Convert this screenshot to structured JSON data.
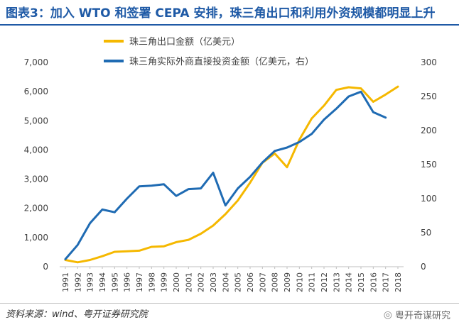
{
  "header": {
    "title": "图表3：加入 WTO 和签署 CEPA 安排，珠三角出口和利用外资规模都明显上升"
  },
  "footer": {
    "source": "资料来源：wind、粤开证券研究院",
    "watermark": "粤开奇谋研究"
  },
  "icons": {
    "watermark": "wechat-icon"
  },
  "chart_data": {
    "type": "line",
    "x": [
      "1991",
      "1992",
      "1993",
      "1994",
      "1995",
      "1996",
      "1997",
      "1998",
      "1999",
      "2000",
      "2001",
      "2002",
      "2003",
      "2004",
      "2005",
      "2006",
      "2007",
      "2008",
      "2009",
      "2010",
      "2011",
      "2012",
      "2013",
      "2014",
      "2015",
      "2016",
      "2017",
      "2018"
    ],
    "series": [
      {
        "name": "珠三角出口金额（亿美元）",
        "axis": "left",
        "color": "#f5b800",
        "values": [
          230,
          150,
          230,
          360,
          510,
          530,
          550,
          680,
          700,
          840,
          920,
          1130,
          1410,
          1800,
          2270,
          2880,
          3560,
          3880,
          3410,
          4350,
          5080,
          5520,
          6060,
          6150,
          6110,
          5650,
          5900,
          6170
        ]
      },
      {
        "name": "珠三角实际外商直接投资金额（亿美元，右）",
        "axis": "right",
        "color": "#1f6bb3",
        "values": [
          11,
          32,
          64,
          84,
          80,
          100,
          118,
          119,
          121,
          104,
          114,
          115,
          138,
          90,
          115,
          132,
          153,
          170,
          175,
          183,
          195,
          216,
          232,
          250,
          257,
          227,
          219,
          null
        ]
      }
    ],
    "y_left": {
      "min": 0,
      "max": 7000,
      "ticks": [
        "0",
        "1,000",
        "2,000",
        "3,000",
        "4,000",
        "5,000",
        "6,000",
        "7,000"
      ]
    },
    "y_right": {
      "min": 0,
      "max": 300,
      "ticks": [
        "0",
        "50",
        "100",
        "150",
        "200",
        "250",
        "300"
      ]
    },
    "legend": "top-left",
    "grid": false
  }
}
